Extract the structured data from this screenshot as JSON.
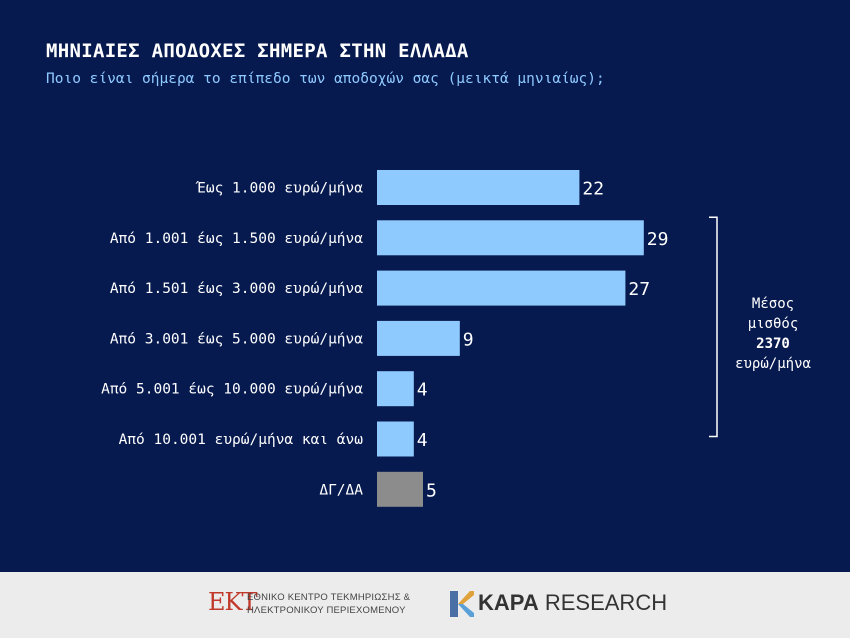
{
  "header": {
    "title": "ΜΗΝΙΑΙΕΣ ΑΠΟΔΟΧΕΣ ΣΗΜΕΡΑ ΣΤΗΝ ΕΛΛΑΔΑ",
    "subtitle": "Ποιο είναι σήμερα το επίπεδο των αποδοχών σας (μεικτά μηνιαίως);"
  },
  "chart_data": {
    "type": "bar",
    "orientation": "horizontal",
    "categories": [
      "Έως 1.000 ευρώ/μήνα",
      "Από 1.001 έως 1.500 ευρώ/μήνα",
      "Από 1.501 έως 3.000 ευρώ/μήνα",
      "Από 3.001 έως 5.000 ευρώ/μήνα",
      "Από 5.001 έως 10.000 ευρώ/μήνα",
      "Από 10.001 ευρώ/μήνα και άνω",
      "ΔΓ/ΔΑ"
    ],
    "values": [
      22,
      29,
      27,
      9,
      4,
      4,
      5
    ],
    "bar_colors": [
      "#8fcaff",
      "#8fcaff",
      "#8fcaff",
      "#8fcaff",
      "#8fcaff",
      "#8fcaff",
      "#8c8c8c"
    ],
    "xlim": [
      0,
      30
    ],
    "grid": false,
    "annotation": {
      "lines": [
        "Μέσος",
        "μισθός",
        "2370",
        "ευρώ/μήνα"
      ],
      "bracket_from_category": 1,
      "bracket_to_category": 5
    }
  },
  "footer": {
    "ekt_mark": "ΕΚΤ",
    "ekt_line1": "ΕΘΝΙΚΟ ΚΕΝΤΡΟ ΤΕΚΜΗΡΙΩΣΗΣ &",
    "ekt_line2": "ΗΛΕΚΤΡΟΝΙΚΟΥ ΠΕΡΙΕΧΟΜΕΝΟΥ",
    "kapa_bold": "KAPA",
    "kapa_light": "RESEARCH"
  },
  "colors": {
    "background": "#061a4f",
    "bar": "#8fcaff",
    "bar_na": "#8c8c8c",
    "text": "#ffffff",
    "subtitle": "#8fcaff"
  }
}
